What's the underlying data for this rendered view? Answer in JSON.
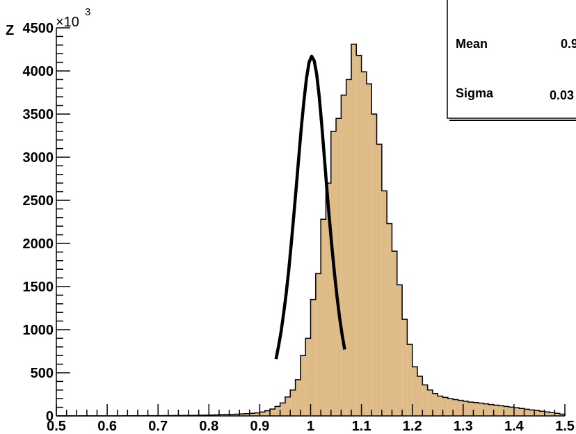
{
  "chart_data": {
    "type": "bar",
    "title": "",
    "xlabel": "",
    "ylabel": "",
    "y_axis_top_label": "Z",
    "y_multiplier_base": "×10",
    "y_multiplier_exp": "3",
    "xlim": [
      0.5,
      1.5
    ],
    "ylim": [
      0,
      4500
    ],
    "grid": false,
    "bin_width": 0.01,
    "x_ticks": [
      {
        "value": 0.5,
        "label": "0.5"
      },
      {
        "value": 0.6,
        "label": "0.6"
      },
      {
        "value": 0.7,
        "label": "0.7"
      },
      {
        "value": 0.8,
        "label": "0.8"
      },
      {
        "value": 0.9,
        "label": "0.9"
      },
      {
        "value": 1.0,
        "label": "1"
      },
      {
        "value": 1.1,
        "label": "1.1"
      },
      {
        "value": 1.2,
        "label": "1.2"
      },
      {
        "value": 1.3,
        "label": "1.3"
      },
      {
        "value": 1.4,
        "label": "1.4"
      },
      {
        "value": 1.5,
        "label": "1.5"
      }
    ],
    "y_ticks": [
      {
        "value": 0,
        "label": "0"
      },
      {
        "value": 500,
        "label": "500"
      },
      {
        "value": 1000,
        "label": "1000"
      },
      {
        "value": 1500,
        "label": "1500"
      },
      {
        "value": 2000,
        "label": "2000"
      },
      {
        "value": 2500,
        "label": "2500"
      },
      {
        "value": 3000,
        "label": "3000"
      },
      {
        "value": 3500,
        "label": "3500"
      },
      {
        "value": 4000,
        "label": "4000"
      },
      {
        "value": 4500,
        "label": "4500"
      }
    ],
    "histogram_values": [
      1,
      1,
      1,
      1,
      1,
      1,
      1,
      1,
      1,
      1,
      1,
      1,
      1,
      2,
      2,
      2,
      2,
      3,
      3,
      3,
      3,
      4,
      4,
      5,
      5,
      6,
      6,
      7,
      8,
      9,
      10,
      12,
      14,
      16,
      18,
      20,
      23,
      26,
      30,
      35,
      45,
      60,
      80,
      110,
      150,
      220,
      300,
      420,
      700,
      900,
      1350,
      1650,
      2280,
      2700,
      3300,
      3450,
      3720,
      3900,
      4310,
      4180,
      3990,
      3850,
      3500,
      3150,
      2610,
      2230,
      1910,
      1520,
      1120,
      830,
      570,
      460,
      360,
      300,
      260,
      230,
      215,
      200,
      190,
      180,
      170,
      160,
      155,
      148,
      140,
      132,
      125,
      118,
      110,
      102,
      95,
      87,
      78,
      70,
      62,
      54,
      46,
      38,
      30,
      20
    ],
    "fit_curve": {
      "x": [
        0.932,
        0.937,
        0.942,
        0.947,
        0.952,
        0.957,
        0.962,
        0.967,
        0.972,
        0.977,
        0.982,
        0.987,
        0.992,
        0.997,
        1.002,
        1.007,
        1.012,
        1.017,
        1.022,
        1.027,
        1.032,
        1.037,
        1.042,
        1.047,
        1.052,
        1.057,
        1.062,
        1.067
      ],
      "y": [
        660,
        810,
        980,
        1190,
        1420,
        1690,
        2000,
        2330,
        2670,
        3020,
        3360,
        3660,
        3920,
        4100,
        4170,
        4120,
        3960,
        3700,
        3370,
        3000,
        2630,
        2280,
        1950,
        1650,
        1380,
        1140,
        940,
        770
      ]
    },
    "bar_color": "#dfbb88",
    "bar_edge_color": "#000000",
    "fit_color": "#000000"
  },
  "stats_box": {
    "rows": [
      {
        "label": "Mean",
        "value": "0.9"
      },
      {
        "label": "Sigma",
        "value": "0.03"
      }
    ]
  }
}
